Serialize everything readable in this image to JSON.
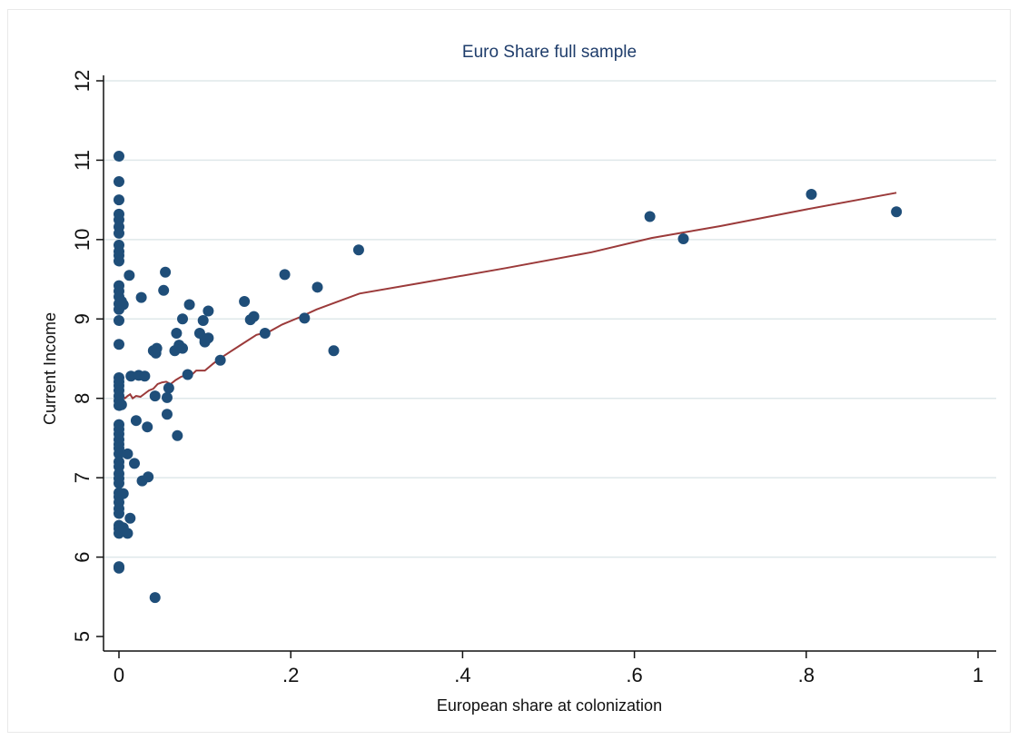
{
  "chart_data": {
    "type": "scatter",
    "title": "Euro Share full sample",
    "xlabel": "European share at colonization",
    "ylabel": "Current Income",
    "xlim": [
      0,
      1
    ],
    "ylim": [
      5,
      12
    ],
    "x_ticks": [
      0,
      0.2,
      0.4,
      0.6,
      0.8,
      1
    ],
    "x_tick_labels": [
      "0",
      ".2",
      ".4",
      ".6",
      ".8",
      "1"
    ],
    "y_ticks": [
      5,
      6,
      7,
      8,
      9,
      10,
      11,
      12
    ],
    "y_tick_labels": [
      "5",
      "6",
      "7",
      "8",
      "9",
      "10",
      "11",
      "12"
    ],
    "grid": true,
    "colors": {
      "points": "#1f4e79",
      "fit_line": "#9b3a3a",
      "grid": "#dfe8ea",
      "title": "#1f3d6b"
    },
    "series": [
      {
        "type": "scatter",
        "points": [
          [
            0,
            11.05
          ],
          [
            0,
            10.73
          ],
          [
            0,
            10.5
          ],
          [
            0,
            10.32
          ],
          [
            0,
            10.25
          ],
          [
            0,
            10.16
          ],
          [
            0,
            10.08
          ],
          [
            0,
            9.93
          ],
          [
            0,
            9.85
          ],
          [
            0,
            9.8
          ],
          [
            0,
            9.73
          ],
          [
            0,
            9.42
          ],
          [
            0,
            9.35
          ],
          [
            0,
            9.28
          ],
          [
            0,
            9.19
          ],
          [
            0,
            9.12
          ],
          [
            0,
            8.98
          ],
          [
            0,
            8.68
          ],
          [
            0,
            8.26
          ],
          [
            0,
            8.21
          ],
          [
            0,
            8.16
          ],
          [
            0,
            8.1
          ],
          [
            0,
            8.03
          ],
          [
            0,
            7.97
          ],
          [
            0,
            7.91
          ],
          [
            0,
            7.67
          ],
          [
            0,
            7.61
          ],
          [
            0,
            7.55
          ],
          [
            0,
            7.48
          ],
          [
            0,
            7.42
          ],
          [
            0,
            7.37
          ],
          [
            0,
            7.3
          ],
          [
            0,
            7.2
          ],
          [
            0,
            7.14
          ],
          [
            0,
            7.05
          ],
          [
            0,
            6.99
          ],
          [
            0,
            6.93
          ],
          [
            0,
            6.81
          ],
          [
            0,
            6.76
          ],
          [
            0,
            6.69
          ],
          [
            0,
            6.61
          ],
          [
            0,
            6.55
          ],
          [
            0,
            6.4
          ],
          [
            0,
            6.36
          ],
          [
            0,
            6.3
          ],
          [
            0,
            5.88
          ],
          [
            0,
            5.86
          ],
          [
            0.003,
            7.92
          ],
          [
            0.003,
            9.22
          ],
          [
            0.005,
            9.18
          ],
          [
            0.005,
            6.37
          ],
          [
            0.005,
            6.8
          ],
          [
            0.01,
            7.3
          ],
          [
            0.01,
            6.3
          ],
          [
            0.012,
            9.55
          ],
          [
            0.013,
            6.49
          ],
          [
            0.014,
            8.28
          ],
          [
            0.018,
            7.18
          ],
          [
            0.02,
            7.72
          ],
          [
            0.023,
            8.29
          ],
          [
            0.026,
            9.27
          ],
          [
            0.027,
            6.96
          ],
          [
            0.03,
            8.28
          ],
          [
            0.033,
            7.64
          ],
          [
            0.034,
            7.01
          ],
          [
            0.04,
            8.6
          ],
          [
            0.042,
            8.03
          ],
          [
            0.043,
            8.57
          ],
          [
            0.044,
            8.63
          ],
          [
            0.042,
            5.49
          ],
          [
            0.052,
            9.36
          ],
          [
            0.054,
            9.59
          ],
          [
            0.056,
            7.8
          ],
          [
            0.056,
            8.01
          ],
          [
            0.058,
            8.13
          ],
          [
            0.065,
            8.6
          ],
          [
            0.067,
            8.82
          ],
          [
            0.068,
            7.53
          ],
          [
            0.07,
            8.67
          ],
          [
            0.074,
            9.0
          ],
          [
            0.074,
            8.63
          ],
          [
            0.08,
            8.3
          ],
          [
            0.082,
            9.18
          ],
          [
            0.094,
            8.82
          ],
          [
            0.098,
            8.98
          ],
          [
            0.1,
            8.75
          ],
          [
            0.1,
            8.71
          ],
          [
            0.104,
            9.1
          ],
          [
            0.104,
            8.76
          ],
          [
            0.118,
            8.48
          ],
          [
            0.146,
            9.22
          ],
          [
            0.153,
            8.99
          ],
          [
            0.157,
            9.03
          ],
          [
            0.17,
            8.82
          ],
          [
            0.193,
            9.56
          ],
          [
            0.216,
            9.01
          ],
          [
            0.231,
            9.4
          ],
          [
            0.25,
            8.6
          ],
          [
            0.279,
            9.87
          ],
          [
            0.618,
            10.29
          ],
          [
            0.657,
            10.01
          ],
          [
            0.806,
            10.57
          ],
          [
            0.905,
            10.35
          ]
        ]
      },
      {
        "type": "line",
        "points": [
          [
            0,
            8.05
          ],
          [
            0.002,
            7.98
          ],
          [
            0.004,
            8.04
          ],
          [
            0.007,
            8.0
          ],
          [
            0.01,
            8.03
          ],
          [
            0.013,
            8.05
          ],
          [
            0.016,
            8.0
          ],
          [
            0.02,
            8.03
          ],
          [
            0.025,
            8.02
          ],
          [
            0.03,
            8.06
          ],
          [
            0.035,
            8.1
          ],
          [
            0.04,
            8.12
          ],
          [
            0.045,
            8.18
          ],
          [
            0.05,
            8.2
          ],
          [
            0.055,
            8.21
          ],
          [
            0.06,
            8.18
          ],
          [
            0.066,
            8.23
          ],
          [
            0.072,
            8.27
          ],
          [
            0.08,
            8.3
          ],
          [
            0.085,
            8.3
          ],
          [
            0.09,
            8.35
          ],
          [
            0.1,
            8.35
          ],
          [
            0.11,
            8.44
          ],
          [
            0.12,
            8.52
          ],
          [
            0.14,
            8.66
          ],
          [
            0.16,
            8.8
          ],
          [
            0.175,
            8.84
          ],
          [
            0.19,
            8.93
          ],
          [
            0.21,
            9.02
          ],
          [
            0.23,
            9.12
          ],
          [
            0.25,
            9.2
          ],
          [
            0.28,
            9.32
          ],
          [
            0.35,
            9.45
          ],
          [
            0.45,
            9.64
          ],
          [
            0.55,
            9.84
          ],
          [
            0.62,
            10.02
          ],
          [
            0.7,
            10.17
          ],
          [
            0.8,
            10.38
          ],
          [
            0.905,
            10.59
          ]
        ]
      }
    ]
  }
}
